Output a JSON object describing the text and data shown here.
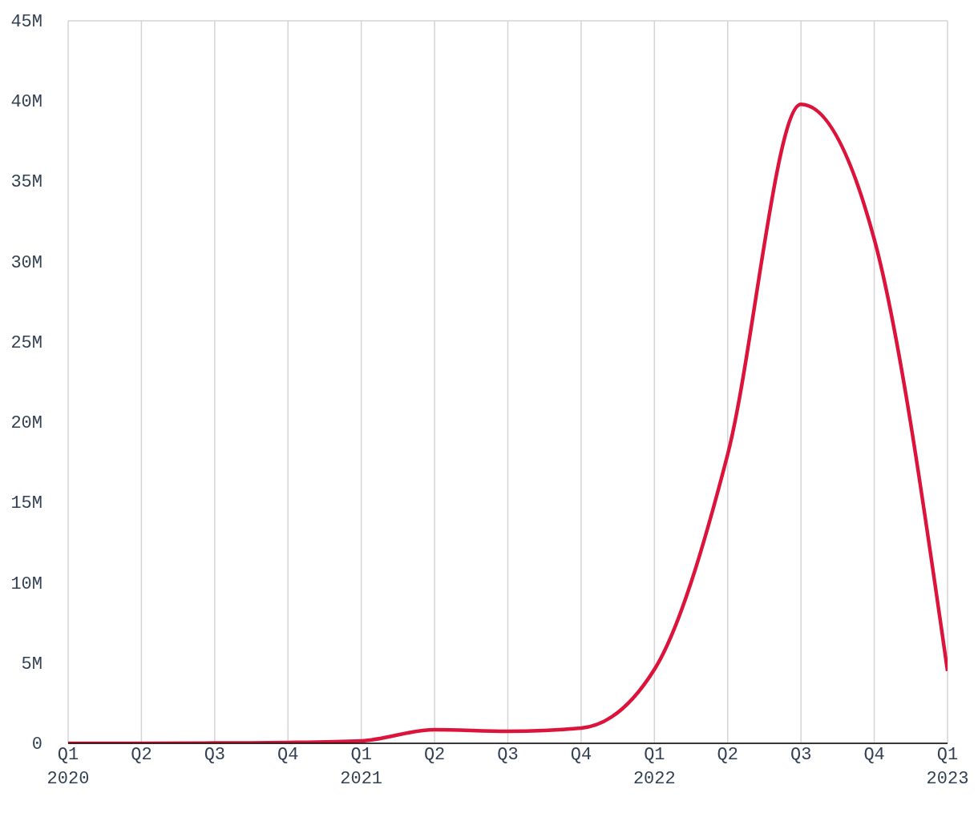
{
  "chart_data": {
    "type": "line",
    "categories": [
      "Q1\n2020",
      "Q2",
      "Q3",
      "Q4",
      "Q1\n2021",
      "Q2",
      "Q3",
      "Q4",
      "Q1\n2022",
      "Q2",
      "Q3",
      "Q4",
      "Q1\n2023"
    ],
    "series": [
      {
        "color": "#dc143c",
        "values": [
          0,
          0,
          20000,
          50000,
          150000,
          850000,
          750000,
          950000,
          4600000,
          18000000,
          39800000,
          31400000,
          4500000
        ]
      }
    ],
    "ylim": [
      0,
      45000000
    ],
    "yticks": [
      0,
      {
        "value": 5000000,
        "label": "5M"
      },
      {
        "value": 10000000,
        "label": "10M"
      },
      {
        "value": 15000000,
        "label": "15M"
      },
      {
        "value": 20000000,
        "label": "20M"
      },
      {
        "value": 25000000,
        "label": "25M"
      },
      {
        "value": 30000000,
        "label": "30M"
      },
      {
        "value": 35000000,
        "label": "35M"
      },
      {
        "value": 40000000,
        "label": "40M"
      },
      {
        "value": 45000000,
        "label": "45M"
      }
    ],
    "grid": true
  }
}
